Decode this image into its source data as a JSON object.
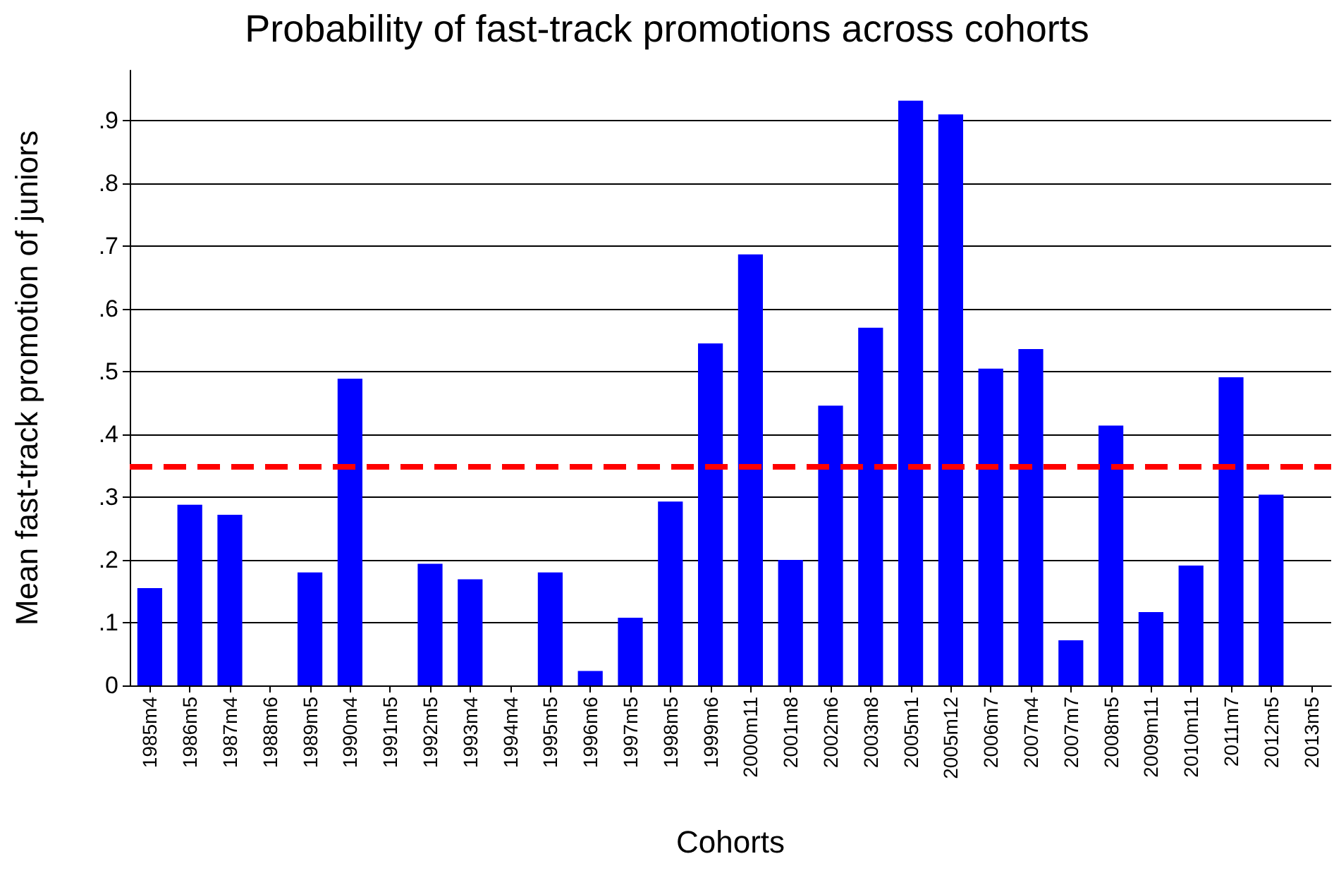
{
  "chart_data": {
    "type": "bar",
    "title": "Probability of fast-track promotions across cohorts",
    "xlabel": "Cohorts",
    "ylabel": "Mean fast-track promotion of juniors",
    "categories": [
      "1985m4",
      "1986m5",
      "1987m4",
      "1988m6",
      "1989m5",
      "1990m4",
      "1991m5",
      "1992m5",
      "1993m4",
      "1994m4",
      "1995m5",
      "1996m6",
      "1997m5",
      "1998m5",
      "1999m6",
      "2000m11",
      "2001m8",
      "2002m6",
      "2003m8",
      "2005m1",
      "2005m12",
      "2006m7",
      "2007m4",
      "2007m7",
      "2008m5",
      "2009m11",
      "2010m11",
      "2011m7",
      "2012m5",
      "2013m5"
    ],
    "values": [
      0.155,
      0.288,
      0.272,
      0,
      0.18,
      0.489,
      0,
      0.194,
      0.169,
      0,
      0.18,
      0.023,
      0.108,
      0.293,
      0.545,
      0.687,
      0.2,
      0.446,
      0.57,
      0.932,
      0.91,
      0.505,
      0.536,
      0.072,
      0.414,
      0.117,
      0.191,
      0.491,
      0.304,
      0
    ],
    "color": "#0000ff",
    "ylim": [
      0,
      0.98
    ],
    "yticks": [
      0,
      {
        "value": 0.1,
        "label": ".1"
      },
      {
        "value": 0.2,
        "label": ".2"
      },
      {
        "value": 0.3,
        "label": ".3"
      },
      {
        "value": 0.4,
        "label": ".4"
      },
      {
        "value": 0.5,
        "label": ".5"
      },
      {
        "value": 0.6,
        "label": ".6"
      },
      {
        "value": 0.7,
        "label": ".7"
      },
      {
        "value": 0.8,
        "label": ".8"
      },
      {
        "value": 0.9,
        "label": ".9"
      }
    ],
    "grid": "y",
    "ref_lines": [
      {
        "axis": "y",
        "value": 0.35,
        "color": "#ff0000",
        "line_style": "dashed"
      }
    ]
  }
}
